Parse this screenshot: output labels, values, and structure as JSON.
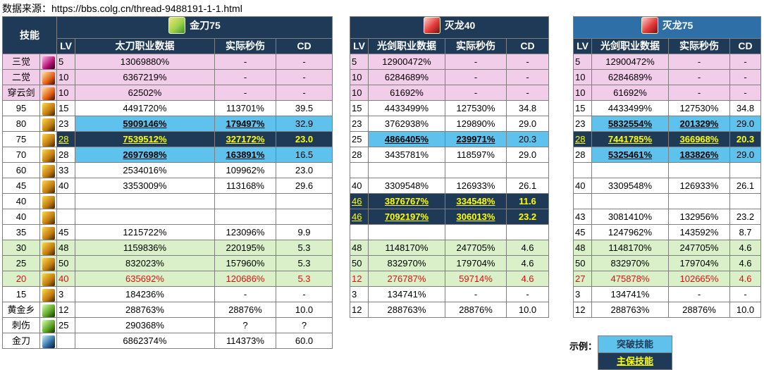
{
  "source_text": "数据来源：https://bbs.colg.cn/thread-9488191-1-1.html",
  "colors": {
    "navy": "#1f3a57",
    "blue": "#5ec2ec",
    "pink": "#f2cdea",
    "green": "#d9f0c9",
    "yellow": "#ffff00"
  },
  "left": {
    "skill_header": "技能",
    "title": "金刀75",
    "headers": [
      "LV",
      "太刀职业数据",
      "实际秒伤",
      "CD"
    ],
    "rows": [
      {
        "skill": "三觉",
        "lv": "5",
        "pct": "13069880%",
        "dps": "-",
        "cd": "-"
      },
      {
        "skill": "二觉",
        "lv": "10",
        "pct": "6367219%",
        "dps": "-",
        "cd": "-"
      },
      {
        "skill": "穿云剑",
        "lv": "10",
        "pct": "62502%",
        "dps": "-",
        "cd": "-"
      },
      {
        "skill": "95",
        "lv": "15",
        "pct": "4491720%",
        "dps": "113701%",
        "cd": "39.5"
      },
      {
        "skill": "80",
        "lv": "23",
        "pct": "5909146%",
        "dps": "179497%",
        "cd": "32.9"
      },
      {
        "skill": "75",
        "lv": "28",
        "pct": "7539512%",
        "dps": "327172%",
        "cd": "23.0"
      },
      {
        "skill": "70",
        "lv": "28",
        "pct": "2697698%",
        "dps": "163891%",
        "cd": "16.5"
      },
      {
        "skill": "60",
        "lv": "33",
        "pct": "2534016%",
        "dps": "109962%",
        "cd": "23.0"
      },
      {
        "skill": "45",
        "lv": "40",
        "pct": "3353009%",
        "dps": "113168%",
        "cd": "29.6"
      },
      {
        "skill": "40",
        "lv": "",
        "pct": "",
        "dps": "",
        "cd": ""
      },
      {
        "skill": "40",
        "lv": "",
        "pct": "",
        "dps": "",
        "cd": ""
      },
      {
        "skill": "35",
        "lv": "45",
        "pct": "1215722%",
        "dps": "123096%",
        "cd": "9.9"
      },
      {
        "skill": "30",
        "lv": "48",
        "pct": "1159836%",
        "dps": "220195%",
        "cd": "5.3"
      },
      {
        "skill": "25",
        "lv": "50",
        "pct": "832023%",
        "dps": "157960%",
        "cd": "5.3"
      },
      {
        "skill": "20",
        "lv": "40",
        "pct": "635692%",
        "dps": "120686%",
        "cd": "5.3"
      },
      {
        "skill": "15",
        "lv": "3",
        "pct": "184236%",
        "dps": "-",
        "cd": "-"
      },
      {
        "skill": "黄金乡",
        "lv": "12",
        "pct": "288763%",
        "dps": "28876%",
        "cd": "10.0"
      },
      {
        "skill": "刺伤",
        "lv": "25",
        "pct": "290368%",
        "dps": "?",
        "cd": "?"
      },
      {
        "skill": "金刀",
        "lv": "",
        "pct": "6862374%",
        "dps": "114373%",
        "cd": "60.0"
      }
    ]
  },
  "mid": {
    "title": "灭龙40",
    "headers": [
      "LV",
      "光剑职业数据",
      "实际秒伤",
      "CD"
    ],
    "rows": [
      {
        "lv": "5",
        "pct": "12900472%",
        "dps": "-",
        "cd": "-"
      },
      {
        "lv": "10",
        "pct": "6284689%",
        "dps": "-",
        "cd": "-"
      },
      {
        "lv": "10",
        "pct": "61692%",
        "dps": "-",
        "cd": "-"
      },
      {
        "lv": "15",
        "pct": "4433499%",
        "dps": "127530%",
        "cd": "34.8"
      },
      {
        "lv": "23",
        "pct": "3762938%",
        "dps": "129890%",
        "cd": "29.0"
      },
      {
        "lv": "25",
        "pct": "4866405%",
        "dps": "239971%",
        "cd": "20.3"
      },
      {
        "lv": "28",
        "pct": "3435781%",
        "dps": "118597%",
        "cd": "29.0"
      },
      {
        "lv": "",
        "pct": "",
        "dps": "",
        "cd": ""
      },
      {
        "lv": "40",
        "pct": "3309548%",
        "dps": "126933%",
        "cd": "26.1"
      },
      {
        "lv": "46",
        "pct": "3876767%",
        "dps": "334548%",
        "cd": "11.6"
      },
      {
        "lv": "46",
        "pct": "7092197%",
        "dps": "306013%",
        "cd": "23.2"
      },
      {
        "lv": "",
        "pct": "",
        "dps": "",
        "cd": ""
      },
      {
        "lv": "48",
        "pct": "1148170%",
        "dps": "247705%",
        "cd": "4.6"
      },
      {
        "lv": "50",
        "pct": "832970%",
        "dps": "179704%",
        "cd": "4.6"
      },
      {
        "lv": "12",
        "pct": "276787%",
        "dps": "59714%",
        "cd": "4.6"
      },
      {
        "lv": "3",
        "pct": "134741%",
        "dps": "-",
        "cd": "-"
      },
      {
        "lv": "12",
        "pct": "288763%",
        "dps": "28876%",
        "cd": "10.0"
      }
    ]
  },
  "right": {
    "title": "灭龙75",
    "headers": [
      "LV",
      "光剑职业数据",
      "实际秒伤",
      "CD"
    ],
    "rows": [
      {
        "lv": "5",
        "pct": "12900472%",
        "dps": "-",
        "cd": "-"
      },
      {
        "lv": "10",
        "pct": "6284689%",
        "dps": "-",
        "cd": "-"
      },
      {
        "lv": "10",
        "pct": "61692%",
        "dps": "-",
        "cd": "-"
      },
      {
        "lv": "15",
        "pct": "4433499%",
        "dps": "127530%",
        "cd": "34.8"
      },
      {
        "lv": "23",
        "pct": "5832554%",
        "dps": "201329%",
        "cd": "29.0"
      },
      {
        "lv": "28",
        "pct": "7441785%",
        "dps": "366968%",
        "cd": "20.3"
      },
      {
        "lv": "28",
        "pct": "5325461%",
        "dps": "183826%",
        "cd": "29.0"
      },
      {
        "lv": "",
        "pct": "",
        "dps": "",
        "cd": ""
      },
      {
        "lv": "40",
        "pct": "3309548%",
        "dps": "126933%",
        "cd": "26.1"
      },
      {
        "lv": "",
        "pct": "",
        "dps": "",
        "cd": ""
      },
      {
        "lv": "43",
        "pct": "3081410%",
        "dps": "132956%",
        "cd": "23.2"
      },
      {
        "lv": "45",
        "pct": "1247962%",
        "dps": "143592%",
        "cd": "8.7"
      },
      {
        "lv": "48",
        "pct": "1148170%",
        "dps": "247705%",
        "cd": "4.6"
      },
      {
        "lv": "50",
        "pct": "832970%",
        "dps": "179704%",
        "cd": "4.6"
      },
      {
        "lv": "27",
        "pct": "475878%",
        "dps": "102665%",
        "cd": "4.6"
      },
      {
        "lv": "3",
        "pct": "134741%",
        "dps": "-",
        "cd": "-"
      },
      {
        "lv": "12",
        "pct": "288763%",
        "dps": "28876%",
        "cd": "10.0"
      }
    ]
  },
  "legend": {
    "label": "示例：",
    "breakthrough": "突破技能",
    "main": "主保技能"
  }
}
